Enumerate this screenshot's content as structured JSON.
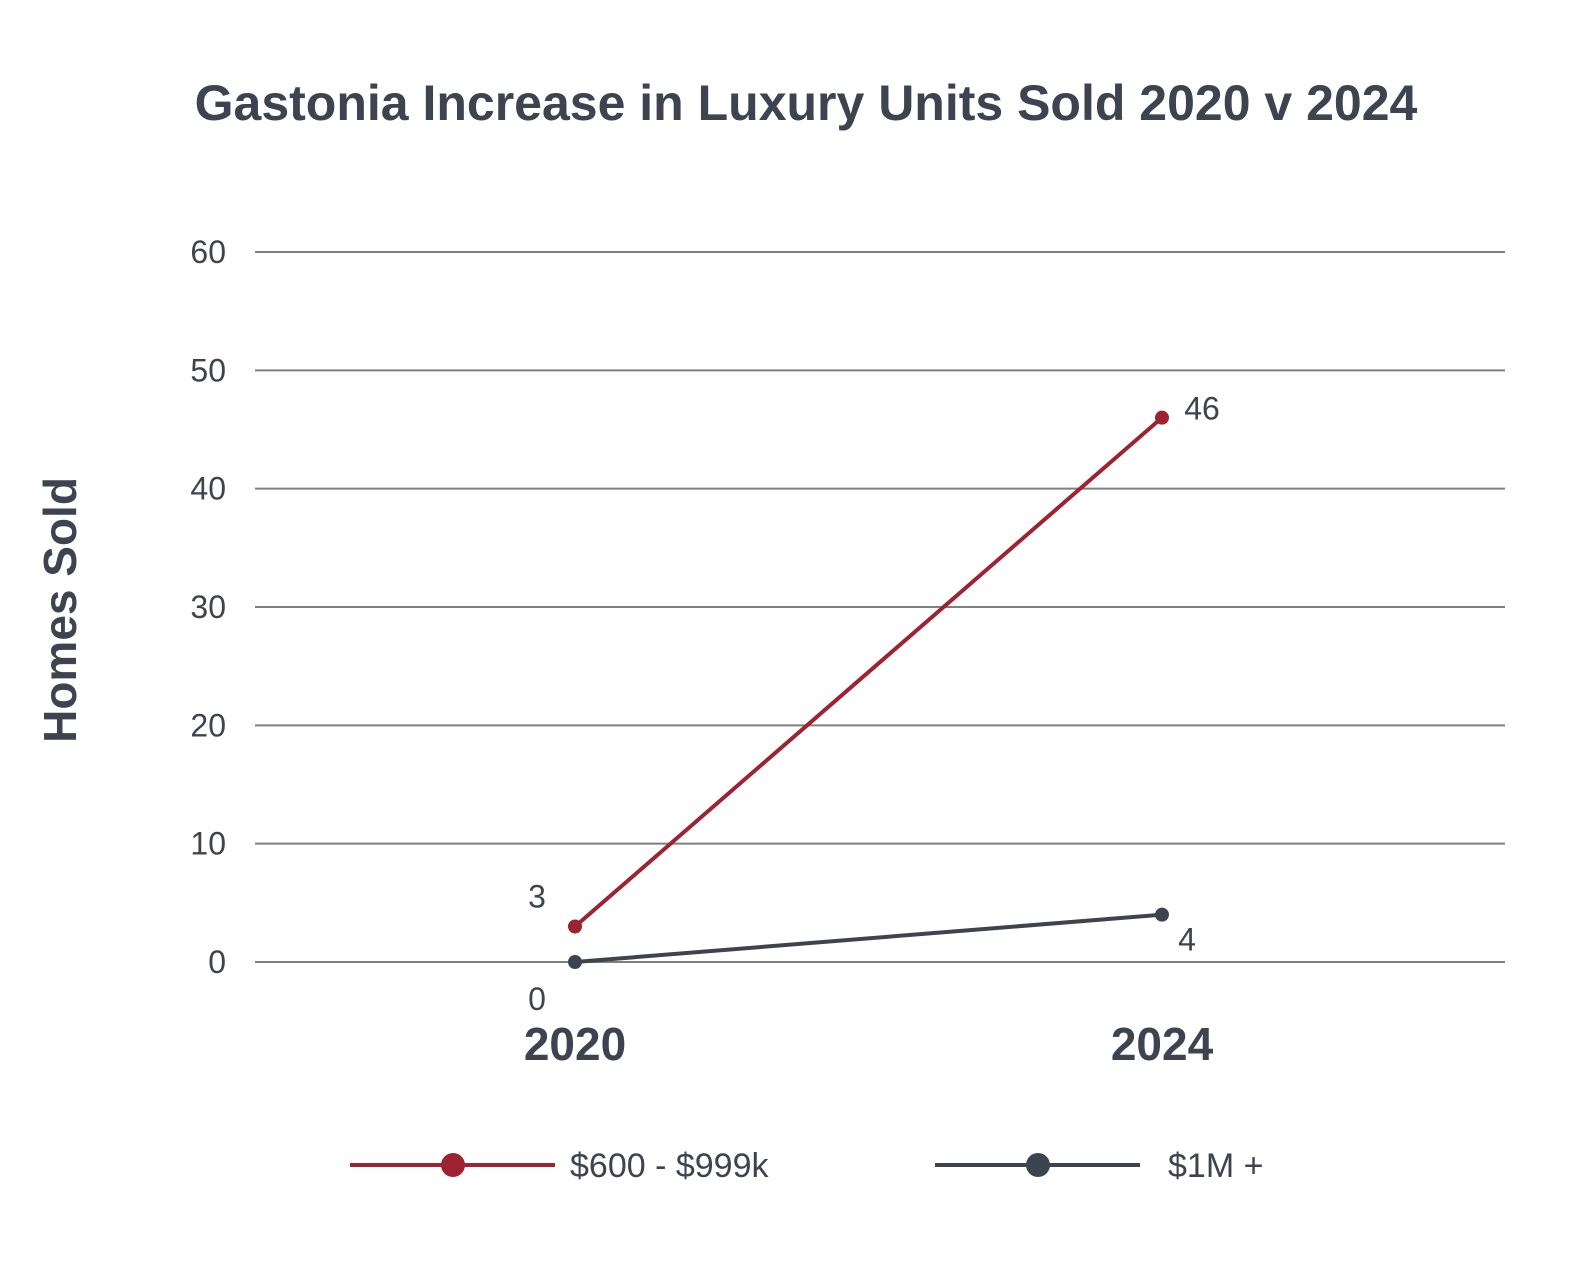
{
  "chart_data": {
    "type": "line",
    "title": "Gastonia Increase in Luxury Units Sold 2020 v 2024",
    "xlabel": "",
    "ylabel": "Homes Sold",
    "categories": [
      "2020",
      "2024"
    ],
    "ylim": [
      0,
      60
    ],
    "yticks": [
      0,
      10,
      20,
      30,
      40,
      50,
      60
    ],
    "grid": true,
    "legend_position": "bottom",
    "series": [
      {
        "name": "$600 - $999k",
        "color": "#9e2332",
        "values": [
          3,
          46
        ],
        "labels": [
          "3",
          "46"
        ]
      },
      {
        "name": "$1M +",
        "color": "#3d4450",
        "values": [
          0,
          4
        ],
        "labels": [
          "0",
          "4"
        ]
      }
    ]
  }
}
